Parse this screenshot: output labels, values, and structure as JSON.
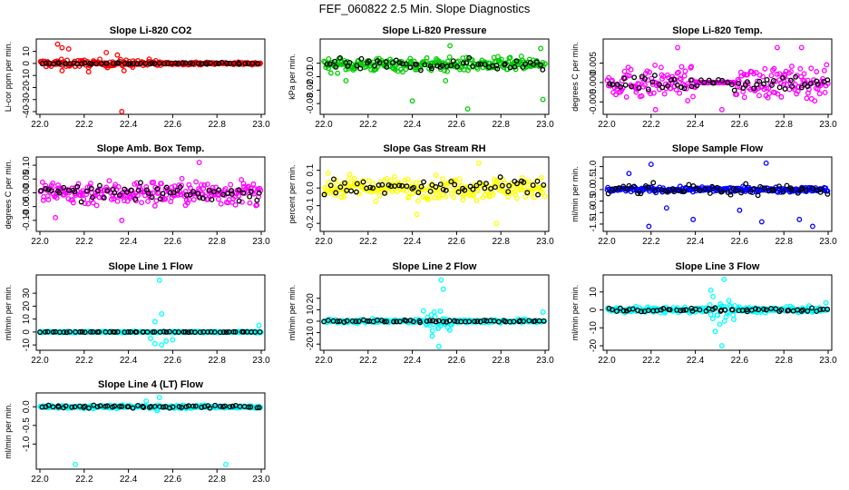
{
  "title": "FEF_060822  2.5 Min. Slope Diagnostics",
  "chart_data": [
    {
      "type": "scatter",
      "title": "Slope Li-820 CO2",
      "ylabel": "Li-cor ppm per min.",
      "color": "#ff0000",
      "xlim": [
        22.0,
        23.0
      ],
      "ylim": [
        -40,
        18
      ],
      "xticks": [
        "22.0",
        "22.2",
        "22.4",
        "22.6",
        "22.8",
        "23.0"
      ],
      "yticks": [
        {
          "v": 10,
          "label": "10"
        },
        {
          "v": 0,
          "label": "0"
        },
        {
          "v": -10,
          "label": "-10"
        },
        {
          "v": -20,
          "label": "-20"
        },
        {
          "v": -30,
          "label": "-30"
        },
        {
          "v": -40,
          "label": "-40"
        }
      ],
      "gen": {
        "center": 0,
        "spread": 3,
        "spread_late": 1,
        "center_late": 0,
        "late_from": 22.55,
        "black_spread": 0.6
      },
      "outliers": [
        [
          22.08,
          16
        ],
        [
          22.1,
          13
        ],
        [
          22.13,
          12
        ],
        [
          22.3,
          9
        ],
        [
          22.35,
          7
        ],
        [
          22.1,
          -6
        ],
        [
          22.22,
          -7
        ],
        [
          22.38,
          -6
        ],
        [
          22.37,
          -40
        ]
      ]
    },
    {
      "type": "scatter",
      "title": "Slope Li-820 Pressure",
      "ylabel": "kPa per min.",
      "color": "#00cc00",
      "xlim": [
        22.0,
        23.0
      ],
      "ylim": [
        -0.036,
        0.016
      ],
      "xticks": [
        "22.0",
        "22.2",
        "22.4",
        "22.6",
        "22.8",
        "23.0"
      ],
      "yticks": [
        {
          "v": 0.0,
          "label": "0.0"
        },
        {
          "v": -0.01,
          "label": "-0.01"
        },
        {
          "v": -0.02,
          "label": "-0.02"
        },
        {
          "v": -0.03,
          "label": "-0.03"
        }
      ],
      "gen": {
        "center": -0.001,
        "spread": 0.005,
        "black_spread": 0.004
      },
      "outliers": [
        [
          22.57,
          0.013
        ],
        [
          22.98,
          0.011
        ],
        [
          22.4,
          -0.028
        ],
        [
          22.65,
          -0.034
        ],
        [
          22.99,
          -0.027
        ],
        [
          22.1,
          -0.013
        ],
        [
          22.55,
          -0.013
        ]
      ]
    },
    {
      "type": "scatter",
      "title": "Slope Li-820 Temp.",
      "ylabel": "degrees C per min.",
      "color": "#ff00ff",
      "xlim": [
        22.0,
        23.0
      ],
      "ylim": [
        -0.0075,
        0.0105
      ],
      "xticks": [
        "22.0",
        "22.2",
        "22.4",
        "22.6",
        "22.8",
        "23.0"
      ],
      "yticks": [
        {
          "v": 0.005,
          "label": "0.005"
        },
        {
          "v": 0.0,
          "label": "0.000"
        },
        {
          "v": -0.005,
          "label": "-0.005"
        }
      ],
      "gen": {
        "center": 0.0,
        "spread": 0.004,
        "flat_from": 22.4,
        "flat_to": 22.58,
        "black_spread": 0.002
      },
      "outliers": [
        [
          22.32,
          0.009
        ],
        [
          22.77,
          0.009
        ],
        [
          22.88,
          0.009
        ],
        [
          22.22,
          -0.007
        ],
        [
          22.52,
          -0.007
        ]
      ]
    },
    {
      "type": "scatter",
      "title": "Slope Amb. Box Temp.",
      "ylabel": "degrees C per min.",
      "color": "#ff00ff",
      "xlim": [
        22.0,
        23.0
      ],
      "ylim": [
        -0.13,
        0.12
      ],
      "xticks": [
        "22.0",
        "22.2",
        "22.4",
        "22.6",
        "22.8",
        "23.0"
      ],
      "yticks": [
        {
          "v": 0.1,
          "label": "0.10"
        },
        {
          "v": 0.05,
          "label": "0.05"
        },
        {
          "v": 0.0,
          "label": "0.00"
        },
        {
          "v": -0.05,
          "label": "-0.05"
        },
        {
          "v": -0.1,
          "label": "-0.10"
        }
      ],
      "gen": {
        "center": 0.0,
        "spread": 0.045,
        "black_spread": 0.025
      },
      "outliers": [
        [
          22.72,
          0.11
        ],
        [
          22.07,
          -0.09
        ],
        [
          22.37,
          -0.1
        ]
      ]
    },
    {
      "type": "scatter",
      "title": "Slope Gas Stream RH",
      "ylabel": "percent per min.",
      "color": "#ffff00",
      "xlim": [
        22.0,
        23.0
      ],
      "ylim": [
        -0.23,
        0.16
      ],
      "xticks": [
        "22.0",
        "22.2",
        "22.4",
        "22.6",
        "22.8",
        "23.0"
      ],
      "yticks": [
        {
          "v": 0.1,
          "label": "0.1"
        },
        {
          "v": 0.0,
          "label": "0.0"
        },
        {
          "v": -0.1,
          "label": "-0.1"
        },
        {
          "v": -0.2,
          "label": "-0.2"
        }
      ],
      "gen": {
        "center": 0.0,
        "spread": 0.06,
        "black_spread": 0.05
      },
      "outliers": [
        [
          22.7,
          0.14
        ],
        [
          22.78,
          -0.2
        ],
        [
          22.42,
          -0.15
        ]
      ]
    },
    {
      "type": "scatter",
      "title": "Slope Sample Flow",
      "ylabel": "ml/min per min.",
      "color": "#0000ff",
      "xlim": [
        22.0,
        23.0
      ],
      "ylim": [
        -1.7,
        1.3
      ],
      "xticks": [
        "22.0",
        "22.2",
        "22.4",
        "22.6",
        "22.8",
        "23.0"
      ],
      "yticks": [
        {
          "v": 1.0,
          "label": "1.0"
        },
        {
          "v": 0.5,
          "label": "0.5"
        },
        {
          "v": 0.0,
          "label": "0.0"
        },
        {
          "v": -0.5,
          "label": "-0.5"
        },
        {
          "v": -1.0,
          "label": "-1.0"
        },
        {
          "v": -1.5,
          "label": "-1.5"
        }
      ],
      "gen": {
        "center": 0.0,
        "spread": 0.1,
        "black_spread": 0.3
      },
      "outliers": [
        [
          22.72,
          1.15
        ],
        [
          22.19,
          -1.6
        ],
        [
          22.39,
          -1.3
        ],
        [
          22.7,
          -1.4
        ],
        [
          22.87,
          -1.3
        ],
        [
          22.93,
          -1.6
        ],
        [
          22.6,
          -0.9
        ],
        [
          22.27,
          -0.8
        ],
        [
          22.2,
          1.1
        ],
        [
          22.1,
          0.7
        ]
      ]
    },
    {
      "type": "scatter",
      "title": "Slope Line 1 Flow",
      "ylabel": "ml/min per min.",
      "color": "#00ffff",
      "xlim": [
        22.0,
        23.0
      ],
      "ylim": [
        -12,
        42
      ],
      "xticks": [
        "22.0",
        "22.2",
        "22.4",
        "22.6",
        "22.8",
        "23.0"
      ],
      "yticks": [
        {
          "v": 30,
          "label": "30"
        },
        {
          "v": 20,
          "label": "20"
        },
        {
          "v": 10,
          "label": "10"
        },
        {
          "v": 0,
          "label": "0"
        },
        {
          "v": -10,
          "label": "-10"
        }
      ],
      "gen": {
        "center": 0,
        "spread": 0.5,
        "black_spread": 0.2
      },
      "outliers": [
        [
          22.54,
          40
        ],
        [
          22.55,
          14
        ],
        [
          22.52,
          8
        ],
        [
          22.5,
          -5
        ],
        [
          22.52,
          -9
        ],
        [
          22.55,
          -10
        ],
        [
          22.57,
          -7
        ],
        [
          22.6,
          -6
        ],
        [
          22.99,
          5
        ]
      ]
    },
    {
      "type": "scatter",
      "title": "Slope Line 2 Flow",
      "ylabel": "ml/min per min.",
      "color": "#00ffff",
      "xlim": [
        22.0,
        23.0
      ],
      "ylim": [
        -23,
        38
      ],
      "xticks": [
        "22.0",
        "22.2",
        "22.4",
        "22.6",
        "22.8",
        "23.0"
      ],
      "yticks": [
        {
          "v": 20,
          "label": "20"
        },
        {
          "v": 10,
          "label": "10"
        },
        {
          "v": 0,
          "label": "0"
        },
        {
          "v": -10,
          "label": "-10"
        },
        {
          "v": -20,
          "label": "-20"
        }
      ],
      "gen": {
        "center": 0,
        "spread": 1.5,
        "burst_at": 22.52,
        "burst_spread": 8,
        "black_spread": 1.0
      },
      "outliers": [
        [
          22.53,
          36
        ],
        [
          22.54,
          28
        ],
        [
          22.52,
          -22
        ],
        [
          22.45,
          9
        ],
        [
          22.49,
          -13
        ],
        [
          22.99,
          8
        ]
      ]
    },
    {
      "type": "scatter",
      "title": "Slope Line 3 Flow",
      "ylabel": "ml/min per min.",
      "color": "#00ffff",
      "xlim": [
        22.0,
        23.0
      ],
      "ylim": [
        -21,
        18
      ],
      "xticks": [
        "22.0",
        "22.2",
        "22.4",
        "22.6",
        "22.8",
        "23.0"
      ],
      "yticks": [
        {
          "v": 10,
          "label": "10"
        },
        {
          "v": 0,
          "label": "0"
        },
        {
          "v": -10,
          "label": "-10"
        },
        {
          "v": -20,
          "label": "-20"
        }
      ],
      "gen": {
        "center": 0,
        "spread": 1.5,
        "burst_at": 22.52,
        "burst_spread": 6,
        "black_spread": 1.0
      },
      "outliers": [
        [
          22.53,
          17
        ],
        [
          22.47,
          11
        ],
        [
          22.52,
          -20
        ],
        [
          22.49,
          -12
        ],
        [
          22.51,
          -8
        ],
        [
          22.99,
          4
        ]
      ]
    },
    {
      "type": "scatter",
      "title": "Slope Line 4 (LT) Flow",
      "ylabel": "ml/min per min.",
      "color": "#00ffff",
      "xlim": [
        22.0,
        23.0
      ],
      "ylim": [
        -1.6,
        0.3
      ],
      "xticks": [
        "22.0",
        "22.2",
        "22.4",
        "22.6",
        "22.8",
        "23.0"
      ],
      "yticks": [
        {
          "v": 0.0,
          "label": "0.0"
        },
        {
          "v": -0.5,
          "label": "-0.5"
        },
        {
          "v": -1.0,
          "label": "-1.0"
        }
      ],
      "gen": {
        "center": 0.0,
        "spread": 0.04,
        "black_spread": 0.04
      },
      "outliers": [
        [
          22.54,
          0.25
        ],
        [
          22.48,
          0.15
        ],
        [
          22.16,
          -1.55
        ],
        [
          22.84,
          -1.55
        ],
        [
          22.53,
          -0.1
        ]
      ]
    }
  ]
}
